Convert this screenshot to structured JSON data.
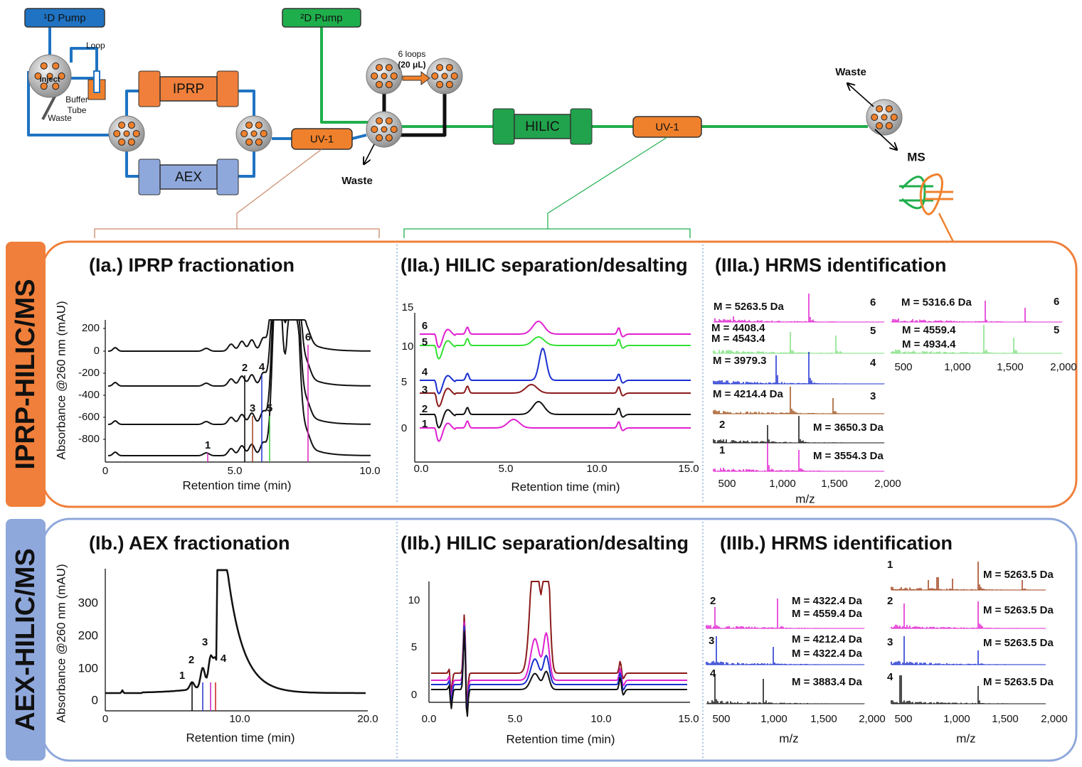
{
  "schematic": {
    "pump_1d": "¹D Pump",
    "pump_2d": "²D Pump",
    "loop": "Loop",
    "inject": "Inject",
    "buffer": "Buffer",
    "tube": "Tube",
    "waste_1": "Waste",
    "iprp_column": "IPRP",
    "aex_column": "AEX",
    "uv_1": "UV-1",
    "loops": "6 loops",
    "loop_volume": "(20 μL)",
    "waste_2": "Waste",
    "hilic_column": "HILIC",
    "uv_2": "UV-1",
    "waste_3": "Waste",
    "ms": "MS"
  },
  "rows": [
    {
      "label": "IPRP-HILIC/MS",
      "panels": [
        {
          "title": "(Ia.) IPRP fractionation",
          "y_label": "Absorbance @260 nm (mAU)",
          "x_label": "Retention time (min)",
          "y_ticks": [
            "200",
            "0",
            "-200",
            "-400",
            "-600",
            "-800"
          ],
          "x_ticks": [
            "0",
            "5.0",
            "10.0"
          ],
          "peak_labels": [
            "1",
            "2",
            "3",
            "4",
            "5",
            "6"
          ]
        },
        {
          "title": "(IIa.) HILIC separation/desalting",
          "x_label": "Retention time (min)",
          "y_ticks": [
            "15",
            "10",
            "5",
            "0"
          ],
          "x_ticks": [
            "0.0",
            "5.0",
            "10.0",
            "15.0"
          ],
          "trace_labels": [
            "6",
            "5",
            "4",
            "3",
            "2",
            "1"
          ]
        },
        {
          "title": "(IIIa.) HRMS identification",
          "x_label": "m/z",
          "spectra": [
            {
              "label": "6",
              "masses": [
                "M = 5263.5 Da"
              ]
            },
            {
              "label": "5",
              "masses": [
                "M = 4408.4",
                "M = 4543.4"
              ]
            },
            {
              "label": "4",
              "masses": [
                "M = 3979.3"
              ]
            },
            {
              "label": "3",
              "masses": [
                "M = 4214.4 Da"
              ]
            },
            {
              "label": "2",
              "masses": [
                "M = 3650.3 Da"
              ]
            },
            {
              "label": "1",
              "masses": [
                "M = 3554.3 Da"
              ]
            },
            {
              "label": "6",
              "masses": [
                "M = 5316.6 Da"
              ]
            },
            {
              "label": "5",
              "masses": [
                "M = 4559.4",
                "M = 4934.4"
              ]
            }
          ],
          "x_ticks_left": [
            "500",
            "1,000",
            "1,500",
            "2,000"
          ],
          "x_ticks_right": [
            "500",
            "1,000",
            "1,500",
            "2,000"
          ]
        }
      ]
    },
    {
      "label": "AEX-HILIC/MS",
      "panels": [
        {
          "title": "(Ib.) AEX fractionation",
          "y_label": "Absorbance @260 nm (mAU)",
          "x_label": "Retention time (min)",
          "y_ticks": [
            "300",
            "200",
            "100",
            "0"
          ],
          "x_ticks": [
            "0",
            "10.0",
            "20.0"
          ],
          "peak_labels": [
            "1",
            "2",
            "3",
            "4"
          ]
        },
        {
          "title": "(IIb.) HILIC separation/desalting",
          "x_label": "Retention time (min)",
          "y_ticks": [
            "10",
            "5",
            "0"
          ],
          "x_ticks": [
            "0.0",
            "5.0",
            "10.0",
            "15.0"
          ]
        },
        {
          "title": "(IIIb.) HRMS identification",
          "x_label": "m/z",
          "spectra": [
            {
              "label": "2",
              "masses": [
                "M = 4322.4 Da",
                "M = 4559.4 Da"
              ]
            },
            {
              "label": "3",
              "masses": [
                "M = 4212.4 Da",
                "M = 4322.4 Da"
              ]
            },
            {
              "label": "4",
              "masses": [
                "M = 3883.4 Da"
              ]
            },
            {
              "label": "1",
              "masses": [
                "M = 5263.5 Da"
              ]
            },
            {
              "label": "2",
              "masses": [
                "M = 5263.5 Da"
              ]
            },
            {
              "label": "3",
              "masses": [
                "M = 5263.5 Da"
              ]
            },
            {
              "label": "4",
              "masses": [
                "M = 5263.5 Da"
              ]
            }
          ],
          "x_ticks_left": [
            "500",
            "1,000",
            "1,500",
            "2,000"
          ],
          "x_ticks_right": [
            "500",
            "1,000",
            "1,500",
            "2,000"
          ]
        }
      ]
    }
  ]
}
